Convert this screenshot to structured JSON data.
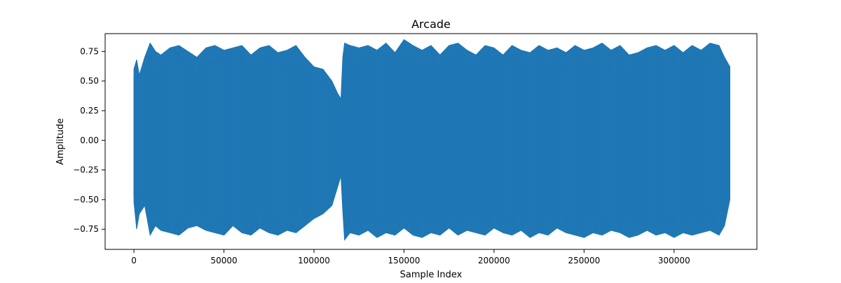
{
  "chart_data": {
    "type": "line",
    "title": "Arcade",
    "xlabel": "Sample Index",
    "ylabel": "Amplitude",
    "xlim": [
      -16000,
      346000
    ],
    "ylim": [
      -0.92,
      0.9
    ],
    "xticks": [
      0,
      50000,
      100000,
      150000,
      200000,
      250000,
      300000
    ],
    "yticks": [
      -0.75,
      -0.5,
      -0.25,
      0.0,
      0.25,
      0.5,
      0.75
    ],
    "grid": false,
    "line_color": "#1f77b4",
    "envelope": {
      "x": [
        0,
        1500,
        3000,
        6000,
        9000,
        12000,
        15000,
        20000,
        25000,
        30000,
        35000,
        40000,
        45000,
        50000,
        55000,
        60000,
        65000,
        70000,
        75000,
        80000,
        85000,
        90000,
        95000,
        100000,
        105000,
        110000,
        113000,
        115000,
        116000,
        117000,
        120000,
        125000,
        130000,
        135000,
        140000,
        145000,
        150000,
        155000,
        160000,
        165000,
        170000,
        175000,
        180000,
        185000,
        190000,
        195000,
        200000,
        205000,
        210000,
        215000,
        220000,
        225000,
        230000,
        235000,
        240000,
        245000,
        250000,
        255000,
        260000,
        265000,
        270000,
        275000,
        280000,
        285000,
        290000,
        295000,
        300000,
        305000,
        310000,
        315000,
        320000,
        325000,
        328000,
        331000
      ],
      "max": [
        0.6,
        0.68,
        0.55,
        0.7,
        0.82,
        0.75,
        0.72,
        0.78,
        0.8,
        0.75,
        0.7,
        0.78,
        0.8,
        0.76,
        0.78,
        0.8,
        0.72,
        0.78,
        0.8,
        0.74,
        0.76,
        0.8,
        0.7,
        0.62,
        0.6,
        0.5,
        0.4,
        0.35,
        0.7,
        0.82,
        0.8,
        0.78,
        0.8,
        0.76,
        0.82,
        0.74,
        0.85,
        0.8,
        0.76,
        0.8,
        0.72,
        0.8,
        0.82,
        0.76,
        0.72,
        0.8,
        0.78,
        0.72,
        0.8,
        0.76,
        0.74,
        0.8,
        0.76,
        0.78,
        0.74,
        0.8,
        0.76,
        0.78,
        0.82,
        0.76,
        0.8,
        0.72,
        0.74,
        0.78,
        0.8,
        0.76,
        0.8,
        0.74,
        0.8,
        0.76,
        0.82,
        0.8,
        0.7,
        0.62
      ],
      "min": [
        -0.52,
        -0.75,
        -0.62,
        -0.55,
        -0.8,
        -0.72,
        -0.76,
        -0.78,
        -0.8,
        -0.74,
        -0.72,
        -0.76,
        -0.78,
        -0.8,
        -0.72,
        -0.78,
        -0.8,
        -0.74,
        -0.78,
        -0.8,
        -0.76,
        -0.78,
        -0.72,
        -0.66,
        -0.62,
        -0.55,
        -0.4,
        -0.3,
        -0.6,
        -0.84,
        -0.78,
        -0.8,
        -0.76,
        -0.82,
        -0.78,
        -0.8,
        -0.74,
        -0.8,
        -0.82,
        -0.78,
        -0.8,
        -0.74,
        -0.8,
        -0.76,
        -0.78,
        -0.8,
        -0.74,
        -0.78,
        -0.8,
        -0.76,
        -0.82,
        -0.78,
        -0.8,
        -0.74,
        -0.78,
        -0.8,
        -0.82,
        -0.78,
        -0.8,
        -0.76,
        -0.78,
        -0.82,
        -0.8,
        -0.76,
        -0.8,
        -0.78,
        -0.82,
        -0.78,
        -0.8,
        -0.78,
        -0.76,
        -0.8,
        -0.72,
        -0.5
      ]
    }
  }
}
